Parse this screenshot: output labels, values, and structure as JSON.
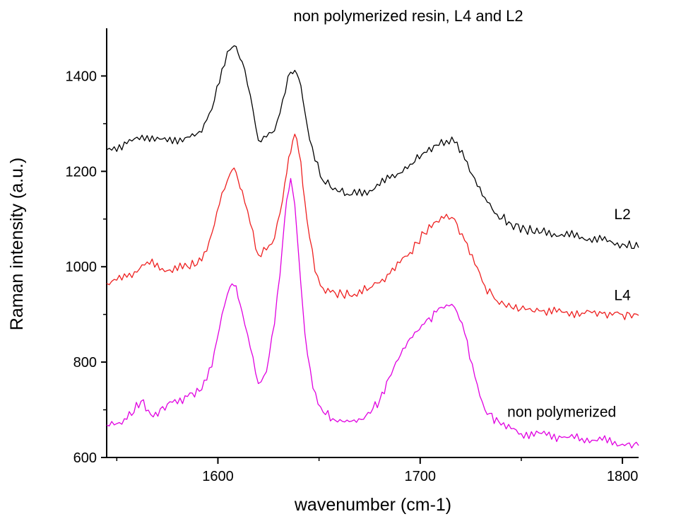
{
  "chart_data": {
    "type": "line",
    "title": "non polymerized resin, L4 and L2",
    "xlabel": "wavenumber (cm-1)",
    "ylabel": "Raman intensity (a.u.)",
    "xlim": [
      1545,
      1808
    ],
    "ylim": [
      600,
      1500
    ],
    "xticks": [
      1600,
      1700,
      1800
    ],
    "xtick_labels": [
      "1600",
      "1700",
      "1800"
    ],
    "yticks": [
      600,
      800,
      1000,
      1200,
      1400
    ],
    "ytick_labels": [
      "600",
      "800",
      "1000",
      "1200",
      "1400"
    ],
    "grid": false,
    "legend": "none (series labeled inline at right)",
    "series": [
      {
        "name": "L2",
        "color": "#000000",
        "label_at": [
          1800,
          1100
        ],
        "x": [
          1545,
          1555,
          1565,
          1575,
          1585,
          1592,
          1597,
          1602,
          1606,
          1609,
          1612,
          1616,
          1620,
          1624,
          1628,
          1632,
          1636,
          1638,
          1641,
          1644,
          1648,
          1652,
          1658,
          1665,
          1675,
          1685,
          1695,
          1702,
          1708,
          1713,
          1717,
          1722,
          1727,
          1732,
          1738,
          1745,
          1752,
          1760,
          1770,
          1780,
          1790,
          1800,
          1808
        ],
        "y": [
          1245,
          1258,
          1275,
          1262,
          1272,
          1282,
          1330,
          1415,
          1455,
          1462,
          1430,
          1360,
          1265,
          1272,
          1285,
          1350,
          1408,
          1412,
          1380,
          1300,
          1222,
          1180,
          1165,
          1150,
          1160,
          1185,
          1215,
          1240,
          1255,
          1265,
          1260,
          1225,
          1185,
          1145,
          1110,
          1090,
          1078,
          1072,
          1068,
          1062,
          1055,
          1048,
          1040
        ]
      },
      {
        "name": "L4",
        "color": "#ee2020",
        "label_at": [
          1800,
          930
        ],
        "x": [
          1545,
          1555,
          1565,
          1575,
          1585,
          1592,
          1597,
          1602,
          1606,
          1609,
          1612,
          1616,
          1620,
          1624,
          1628,
          1632,
          1635,
          1638,
          1641,
          1644,
          1648,
          1652,
          1658,
          1665,
          1675,
          1685,
          1695,
          1702,
          1708,
          1713,
          1717,
          1722,
          1727,
          1732,
          1738,
          1745,
          1752,
          1760,
          1770,
          1780,
          1790,
          1800,
          1808
        ],
        "y": [
          965,
          978,
          1010,
          992,
          1000,
          1012,
          1070,
          1155,
          1195,
          1198,
          1160,
          1090,
          1025,
          1035,
          1060,
          1140,
          1230,
          1278,
          1220,
          1100,
          990,
          955,
          945,
          940,
          955,
          985,
          1030,
          1070,
          1095,
          1110,
          1100,
          1055,
          1005,
          960,
          928,
          915,
          910,
          907,
          905,
          903,
          902,
          900,
          898
        ]
      },
      {
        "name": "non polymerized",
        "color": "#e000e0",
        "label_at": [
          1770,
          685
        ],
        "x": [
          1545,
          1555,
          1562,
          1568,
          1575,
          1585,
          1592,
          1597,
          1602,
          1606,
          1609,
          1612,
          1616,
          1620,
          1624,
          1628,
          1632,
          1634,
          1636,
          1638,
          1640,
          1643,
          1647,
          1652,
          1658,
          1665,
          1672,
          1680,
          1688,
          1695,
          1702,
          1708,
          1713,
          1717,
          1722,
          1727,
          1732,
          1740,
          1750,
          1760,
          1770,
          1780,
          1790,
          1800,
          1808
        ],
        "y": [
          668,
          680,
          718,
          685,
          712,
          728,
          742,
          790,
          900,
          958,
          960,
          905,
          830,
          755,
          780,
          880,
          1050,
          1140,
          1185,
          1130,
          1020,
          860,
          745,
          695,
          678,
          675,
          680,
          720,
          800,
          850,
          880,
          905,
          920,
          915,
          860,
          770,
          700,
          668,
          650,
          650,
          642,
          640,
          636,
          628,
          625
        ]
      }
    ]
  }
}
